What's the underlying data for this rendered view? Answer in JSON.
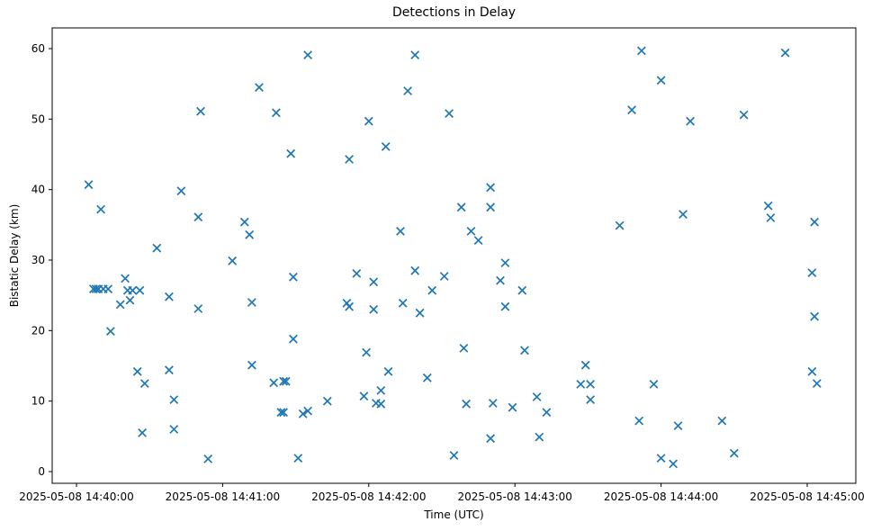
{
  "chart_data": {
    "type": "scatter",
    "title": "Detections in Delay",
    "xlabel": "Time (UTC)",
    "ylabel": "Bistatic Delay (km)",
    "marker": "x",
    "marker_color": "#1f77b4",
    "axis_color": "#000000",
    "background_color": "#ffffff",
    "grid": "off",
    "legend": "none",
    "y_ticks": [
      0,
      10,
      20,
      30,
      40,
      50,
      60
    ],
    "ylim": [
      -1.7,
      63.0
    ],
    "x_ticks": [
      {
        "seconds": 0,
        "label": "2025-05-08 14:40:00"
      },
      {
        "seconds": 60,
        "label": "2025-05-08 14:41:00"
      },
      {
        "seconds": 120,
        "label": "2025-05-08 14:42:00"
      },
      {
        "seconds": 180,
        "label": "2025-05-08 14:43:00"
      },
      {
        "seconds": 240,
        "label": "2025-05-08 14:44:00"
      },
      {
        "seconds": 300,
        "label": "2025-05-08 14:45:00"
      }
    ],
    "xlim_seconds": [
      -10,
      320
    ],
    "points_format": "[seconds_after_14:40:00_UTC, bistatic_delay_km]",
    "points": [
      [
        5,
        40.7
      ],
      [
        10,
        37.2
      ],
      [
        7,
        25.9
      ],
      [
        8,
        25.9
      ],
      [
        9,
        25.9
      ],
      [
        11,
        25.9
      ],
      [
        13,
        25.9
      ],
      [
        14,
        19.9
      ],
      [
        18,
        23.7
      ],
      [
        20,
        27.4
      ],
      [
        21,
        25.7
      ],
      [
        22,
        24.3
      ],
      [
        23,
        25.7
      ],
      [
        25,
        14.2
      ],
      [
        26,
        25.7
      ],
      [
        27,
        5.5
      ],
      [
        28,
        12.5
      ],
      [
        33,
        31.7
      ],
      [
        38,
        24.8
      ],
      [
        38,
        14.4
      ],
      [
        40,
        10.2
      ],
      [
        40,
        6.0
      ],
      [
        43,
        39.8
      ],
      [
        50,
        36.1
      ],
      [
        50,
        23.1
      ],
      [
        51,
        51.1
      ],
      [
        54,
        1.8
      ],
      [
        64,
        29.9
      ],
      [
        69,
        35.4
      ],
      [
        71,
        33.6
      ],
      [
        72,
        24.0
      ],
      [
        72,
        15.1
      ],
      [
        75,
        54.5
      ],
      [
        81,
        12.6
      ],
      [
        82,
        50.9
      ],
      [
        84,
        8.4
      ],
      [
        85,
        8.4
      ],
      [
        85,
        12.8
      ],
      [
        86,
        12.8
      ],
      [
        88,
        45.1
      ],
      [
        89,
        27.6
      ],
      [
        89,
        18.8
      ],
      [
        91,
        1.9
      ],
      [
        93,
        8.2
      ],
      [
        95,
        59.1
      ],
      [
        95,
        8.6
      ],
      [
        103,
        10.0
      ],
      [
        111,
        23.9
      ],
      [
        112,
        44.3
      ],
      [
        112,
        23.4
      ],
      [
        115,
        28.1
      ],
      [
        118,
        10.7
      ],
      [
        119,
        16.9
      ],
      [
        120,
        49.7
      ],
      [
        122,
        26.9
      ],
      [
        122,
        23.0
      ],
      [
        123,
        9.7
      ],
      [
        125,
        11.5
      ],
      [
        125,
        9.6
      ],
      [
        127,
        46.1
      ],
      [
        128,
        14.2
      ],
      [
        133,
        34.1
      ],
      [
        134,
        23.9
      ],
      [
        136,
        54.0
      ],
      [
        139,
        59.1
      ],
      [
        139,
        28.5
      ],
      [
        141,
        22.5
      ],
      [
        144,
        13.3
      ],
      [
        146,
        25.7
      ],
      [
        151,
        27.7
      ],
      [
        153,
        50.8
      ],
      [
        155,
        2.3
      ],
      [
        158,
        37.5
      ],
      [
        159,
        17.5
      ],
      [
        160,
        9.6
      ],
      [
        162,
        34.1
      ],
      [
        165,
        32.8
      ],
      [
        170,
        40.3
      ],
      [
        170,
        37.5
      ],
      [
        170,
        4.7
      ],
      [
        171,
        9.7
      ],
      [
        174,
        27.1
      ],
      [
        176,
        29.6
      ],
      [
        176,
        23.4
      ],
      [
        179,
        9.1
      ],
      [
        183,
        25.7
      ],
      [
        184,
        17.2
      ],
      [
        189,
        10.6
      ],
      [
        190,
        4.9
      ],
      [
        193,
        8.4
      ],
      [
        207,
        12.4
      ],
      [
        209,
        15.1
      ],
      [
        211,
        12.4
      ],
      [
        211,
        10.2
      ],
      [
        223,
        34.9
      ],
      [
        228,
        51.3
      ],
      [
        231,
        7.2
      ],
      [
        232,
        59.7
      ],
      [
        237,
        12.4
      ],
      [
        240,
        55.5
      ],
      [
        240,
        1.9
      ],
      [
        245,
        1.1
      ],
      [
        247,
        6.5
      ],
      [
        249,
        36.5
      ],
      [
        252,
        49.7
      ],
      [
        265,
        7.2
      ],
      [
        270,
        2.6
      ],
      [
        274,
        50.6
      ],
      [
        284,
        37.7
      ],
      [
        285,
        36.0
      ],
      [
        291,
        59.4
      ],
      [
        302,
        28.2
      ],
      [
        302,
        14.2
      ],
      [
        303,
        35.4
      ],
      [
        303,
        22.0
      ],
      [
        304,
        12.5
      ]
    ]
  },
  "plot_geometry_note": "y=0km at baseline, y=60km near top; x spans 14:39:50 to 14:45:20 UTC"
}
